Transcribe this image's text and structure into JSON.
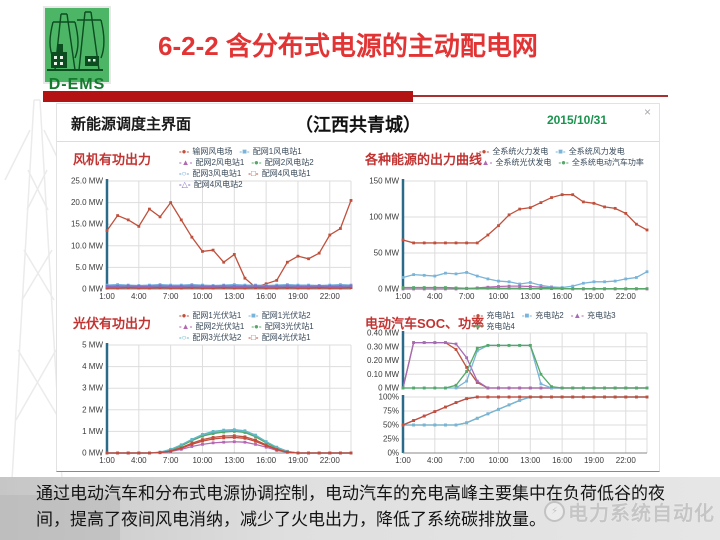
{
  "header": {
    "logo_text": "D-EMS",
    "title": "6-2-2 含分布式电源的主动配电网"
  },
  "dashboard": {
    "title": "新能源调度主界面",
    "subtitle": "（江西共青城）",
    "date": "2015/10/31",
    "close_icon": "×"
  },
  "footer": {
    "text": "通过电动汽车和分布式电源协调控制，电动汽车的充电高峰主要集中在负荷低谷的夜间，提高了夜间风电消纳，减少了火电出力，降低了系统碳排放量。",
    "watermark": "电力系统自动化",
    "watermark_icon": "⚡"
  },
  "colors": {
    "red_bar": "#b31312",
    "title_red": "#e23434",
    "chart_title_red": "#c23432",
    "date_green": "#19934d",
    "axis_blue": "#2a6b8a",
    "grid": "#dddddd"
  },
  "chart_data": [
    {
      "id": "wind",
      "type": "line",
      "title": "风机有功出力",
      "x_labels": [
        "1:00",
        "4:00",
        "7:00",
        "10:00",
        "13:00",
        "16:00",
        "19:00",
        "22:00"
      ],
      "ylim": [
        0,
        25
      ],
      "y_ticks": [
        {
          "v": 25,
          "label": "25.0 MW"
        },
        {
          "v": 20,
          "label": "20.0 MW"
        },
        {
          "v": 15,
          "label": "15.0 MW"
        },
        {
          "v": 10,
          "label": "10.0 MW"
        },
        {
          "v": 5,
          "label": "5.0 MW"
        },
        {
          "v": 0,
          "label": "0 MW"
        }
      ],
      "series": [
        {
          "name": "输网风电场",
          "color": "#c0503c",
          "marker": "●",
          "values": [
            13.5,
            17,
            16,
            14.5,
            18.5,
            16.7,
            20,
            16,
            12,
            8.7,
            9,
            6.2,
            8,
            2.5,
            0.4,
            1.2,
            2,
            6.2,
            7.6,
            7,
            8.3,
            12.5,
            14,
            20.5
          ]
        },
        {
          "name": "配网1风电站1",
          "color": "#7ab4d8",
          "marker": "■",
          "values": [
            0.5,
            0.4,
            0.5,
            0.6,
            0.5,
            0.4,
            0.5,
            0.5,
            0.4,
            0.5,
            0.6,
            0.5,
            0.4,
            0.5,
            0.5,
            0.4,
            0.5,
            0.6,
            0.5,
            0.4,
            0.5,
            0.5,
            0.6,
            0.5
          ]
        },
        {
          "name": "配网2风电站1",
          "color": "#b468b4",
          "marker": "▲",
          "values": [
            0.7,
            0.8,
            0.7,
            0.6,
            0.7,
            0.8,
            0.7,
            0.7,
            0.8,
            0.7,
            0.6,
            0.7,
            0.8,
            0.7,
            0.7,
            0.6,
            0.7,
            0.8,
            0.7,
            0.7,
            0.6,
            0.7,
            0.8,
            0.7
          ]
        },
        {
          "name": "配网2风电站2",
          "color": "#55a868",
          "marker": "●",
          "values": [
            0.3,
            0.3,
            0.4,
            0.3,
            0.3,
            0.4,
            0.3,
            0.3,
            0.4,
            0.3,
            0.3,
            0.4,
            0.3,
            0.3,
            0.4,
            0.3,
            0.3,
            0.4,
            0.3,
            0.3,
            0.4,
            0.3,
            0.3,
            0.4
          ]
        },
        {
          "name": "配网3风电站1",
          "color": "#6fa8dc",
          "marker": "○",
          "values": [
            0.9,
            1,
            0.9,
            0.8,
            0.9,
            1,
            0.9,
            0.9,
            1,
            0.9,
            0.8,
            0.9,
            1,
            0.9,
            0.9,
            0.8,
            0.9,
            1,
            0.9,
            0.9,
            0.8,
            0.9,
            1,
            0.9
          ]
        },
        {
          "name": "配网4风电站1",
          "color": "#c44a3e",
          "marker": "□",
          "values": [
            0.2,
            0.2,
            0.3,
            0.2,
            0.2,
            0.3,
            0.2,
            0.2,
            0.3,
            0.2,
            0.2,
            0.3,
            0.2,
            0.2,
            0.3,
            0.2,
            0.2,
            0.3,
            0.2,
            0.2,
            0.3,
            0.2,
            0.2,
            0.3
          ]
        },
        {
          "name": "配网4风电站2",
          "color": "#8a6cc0",
          "marker": "△",
          "values": [
            0.6,
            0.6,
            0.7,
            0.6,
            0.6,
            0.7,
            0.6,
            0.6,
            0.7,
            0.6,
            0.6,
            0.7,
            0.6,
            0.6,
            0.7,
            0.6,
            0.6,
            0.7,
            0.6,
            0.6,
            0.7,
            0.6,
            0.6,
            0.7
          ]
        }
      ]
    },
    {
      "id": "energy",
      "type": "line",
      "title": "各种能源的出力曲线",
      "x_labels": [
        "1:00",
        "4:00",
        "7:00",
        "10:00",
        "13:00",
        "16:00",
        "19:00",
        "22:00"
      ],
      "ylim": [
        0,
        150
      ],
      "y_ticks": [
        {
          "v": 150,
          "label": "150 MW"
        },
        {
          "v": 100,
          "label": "100 MW"
        },
        {
          "v": 50,
          "label": "50 MW"
        },
        {
          "v": 0,
          "label": "0 MW"
        }
      ],
      "series": [
        {
          "name": "全系统火力发电",
          "color": "#c0503c",
          "marker": "●",
          "values": [
            68,
            64,
            64,
            64,
            64,
            64,
            64,
            64,
            75,
            88,
            103,
            111,
            113,
            120,
            127,
            131,
            131,
            121,
            119,
            114,
            112,
            105,
            90,
            82
          ]
        },
        {
          "name": "全系统风力发电",
          "color": "#7ab4d8",
          "marker": "■",
          "values": [
            16,
            20,
            19,
            18,
            22,
            21,
            23,
            18,
            14,
            11,
            10,
            7,
            9,
            5,
            3,
            2,
            4,
            8,
            10,
            10,
            11,
            14,
            16,
            24
          ]
        },
        {
          "name": "全系统光伏发电",
          "color": "#b468b4",
          "marker": "▲",
          "values": [
            0,
            0,
            0,
            0,
            0,
            0,
            0.5,
            1.5,
            2.5,
            3.5,
            4,
            4,
            3.5,
            2.5,
            1.5,
            0.5,
            0,
            0,
            0,
            0,
            0,
            0,
            0,
            0
          ]
        },
        {
          "name": "全系统电动汽车功率",
          "color": "#55a868",
          "marker": "●",
          "values": [
            2,
            2,
            2,
            2,
            2,
            1.5,
            1,
            1,
            1,
            1,
            1,
            1,
            0.5,
            0.5,
            0.5,
            0.5,
            0.5,
            0.5,
            0.5,
            0.5,
            0.5,
            0.5,
            0.5,
            0.5
          ]
        }
      ]
    },
    {
      "id": "pv",
      "type": "line",
      "title": "光伏有功出力",
      "x_labels": [
        "1:00",
        "4:00",
        "7:00",
        "10:00",
        "13:00",
        "16:00",
        "19:00",
        "22:00"
      ],
      "ylim": [
        0,
        5
      ],
      "y_ticks": [
        {
          "v": 5,
          "label": "5 MW"
        },
        {
          "v": 4,
          "label": "4 MW"
        },
        {
          "v": 3,
          "label": "3 MW"
        },
        {
          "v": 2,
          "label": "2 MW"
        },
        {
          "v": 1,
          "label": "1 MW"
        },
        {
          "v": 0,
          "label": "0 MW"
        }
      ],
      "series": [
        {
          "name": "配网1光伏站1",
          "color": "#c0503c",
          "marker": "●",
          "values": [
            0,
            0,
            0,
            0,
            0,
            0.02,
            0.1,
            0.25,
            0.45,
            0.62,
            0.72,
            0.78,
            0.8,
            0.75,
            0.6,
            0.38,
            0.18,
            0.05,
            0,
            0,
            0,
            0,
            0,
            0
          ]
        },
        {
          "name": "配网1光伏站2",
          "color": "#7ab4d8",
          "marker": "■",
          "values": [
            0,
            0,
            0,
            0,
            0,
            0.03,
            0.15,
            0.35,
            0.6,
            0.82,
            0.95,
            1.02,
            1.05,
            1.0,
            0.8,
            0.5,
            0.25,
            0.07,
            0,
            0,
            0,
            0,
            0,
            0
          ]
        },
        {
          "name": "配网2光伏站1",
          "color": "#b468b4",
          "marker": "▲",
          "values": [
            0,
            0,
            0,
            0,
            0,
            0.01,
            0.07,
            0.17,
            0.3,
            0.4,
            0.47,
            0.5,
            0.52,
            0.5,
            0.4,
            0.27,
            0.12,
            0.03,
            0,
            0,
            0,
            0,
            0,
            0
          ]
        },
        {
          "name": "配网3光伏站1",
          "color": "#55a868",
          "marker": "●",
          "values": [
            0,
            0,
            0,
            0,
            0,
            0.03,
            0.14,
            0.33,
            0.57,
            0.78,
            0.9,
            0.97,
            1.0,
            0.95,
            0.75,
            0.47,
            0.22,
            0.06,
            0,
            0,
            0,
            0,
            0,
            0
          ]
        },
        {
          "name": "配网3光伏站2",
          "color": "#62b8c7",
          "marker": "○",
          "values": [
            0,
            0,
            0,
            0,
            0,
            0.04,
            0.17,
            0.38,
            0.63,
            0.86,
            1.0,
            1.06,
            1.08,
            1.03,
            0.83,
            0.53,
            0.27,
            0.08,
            0,
            0,
            0,
            0,
            0,
            0
          ]
        },
        {
          "name": "配网4光伏站1",
          "color": "#c44a3e",
          "marker": "□",
          "values": [
            0,
            0,
            0,
            0,
            0,
            0.02,
            0.09,
            0.22,
            0.4,
            0.55,
            0.65,
            0.7,
            0.72,
            0.68,
            0.54,
            0.34,
            0.16,
            0.04,
            0,
            0,
            0,
            0,
            0,
            0
          ]
        }
      ]
    },
    {
      "id": "ev",
      "type": "line",
      "title": "电动汽车SOC、功率",
      "x_labels": [
        "1:00",
        "4:00",
        "7:00",
        "10:00",
        "13:00",
        "16:00",
        "19:00",
        "22:00"
      ],
      "legend": [
        {
          "name": "充电站1",
          "color": "#c0503c",
          "marker": "●"
        },
        {
          "name": "充电站2",
          "color": "#7ab4d8",
          "marker": "■"
        },
        {
          "name": "充电站3",
          "color": "#a66bb5",
          "marker": "▲"
        },
        {
          "name": "充电站4",
          "color": "#55a868",
          "marker": "●"
        }
      ],
      "subplots": [
        {
          "name": "充电功率",
          "ylim": [
            0,
            0.4
          ],
          "y_ticks": [
            {
              "v": 0.4,
              "label": "0.40 MW"
            },
            {
              "v": 0.3,
              "label": "0.30 MW"
            },
            {
              "v": 0.2,
              "label": "0.20 MW"
            },
            {
              "v": 0.1,
              "label": "0.10 MW"
            },
            {
              "v": 0,
              "label": "0 MW"
            }
          ],
          "series": [
            {
              "name": "充电站1",
              "color": "#c0503c",
              "values": [
                0,
                0.33,
                0.33,
                0.33,
                0.33,
                0.28,
                0.15,
                0.04,
                0,
                0,
                0,
                0,
                0,
                0,
                0,
                0,
                0,
                0,
                0,
                0,
                0,
                0,
                0,
                0
              ]
            },
            {
              "name": "充电站3",
              "color": "#a66bb5",
              "values": [
                0,
                0.33,
                0.33,
                0.33,
                0.33,
                0.32,
                0.22,
                0.05,
                0,
                0,
                0,
                0,
                0,
                0,
                0,
                0,
                0,
                0,
                0,
                0,
                0,
                0,
                0,
                0
              ]
            },
            {
              "name": "充电站2",
              "color": "#7ab4d8",
              "values": [
                0,
                0,
                0,
                0,
                0,
                0,
                0.05,
                0.27,
                0.31,
                0.31,
                0.31,
                0.31,
                0.31,
                0.03,
                0,
                0,
                0,
                0,
                0,
                0,
                0,
                0,
                0,
                0
              ]
            },
            {
              "name": "充电站4",
              "color": "#55a868",
              "values": [
                0,
                0,
                0,
                0,
                0,
                0.02,
                0.12,
                0.29,
                0.31,
                0.31,
                0.31,
                0.31,
                0.31,
                0.1,
                0.01,
                0,
                0,
                0,
                0,
                0,
                0,
                0,
                0,
                0
              ]
            }
          ]
        },
        {
          "name": "SOC",
          "ylim": [
            0,
            100
          ],
          "y_ticks": [
            {
              "v": 100,
              "label": "100%"
            },
            {
              "v": 75,
              "label": "75%"
            },
            {
              "v": 50,
              "label": "50%"
            },
            {
              "v": 25,
              "label": "25%"
            },
            {
              "v": 0,
              "label": "0%"
            }
          ],
          "series": [
            {
              "name": "充电站3",
              "color": "#a66bb5",
              "values": [
                50,
                58,
                66,
                74,
                82,
                90,
                97,
                100,
                100,
                100,
                100,
                100,
                100,
                100,
                100,
                100,
                100,
                100,
                100,
                100,
                100,
                100,
                100,
                100
              ]
            },
            {
              "name": "充电站4",
              "color": "#55a868",
              "values": [
                50,
                50,
                50,
                50,
                50,
                50,
                54,
                62,
                70,
                78,
                86,
                94,
                100,
                100,
                100,
                100,
                100,
                100,
                100,
                100,
                100,
                100,
                100,
                100
              ]
            },
            {
              "name": "充电站2",
              "color": "#7ab4d8",
              "values": [
                50,
                50,
                50,
                50,
                50,
                50,
                54,
                62,
                70,
                78,
                86,
                94,
                100,
                100,
                100,
                100,
                100,
                100,
                100,
                100,
                100,
                100,
                100,
                100
              ]
            },
            {
              "name": "充电站1",
              "color": "#c0503c",
              "values": [
                50,
                58,
                66,
                74,
                82,
                90,
                97,
                100,
                100,
                100,
                100,
                100,
                100,
                100,
                100,
                100,
                100,
                100,
                100,
                100,
                100,
                100,
                100,
                100
              ]
            }
          ]
        }
      ]
    }
  ]
}
